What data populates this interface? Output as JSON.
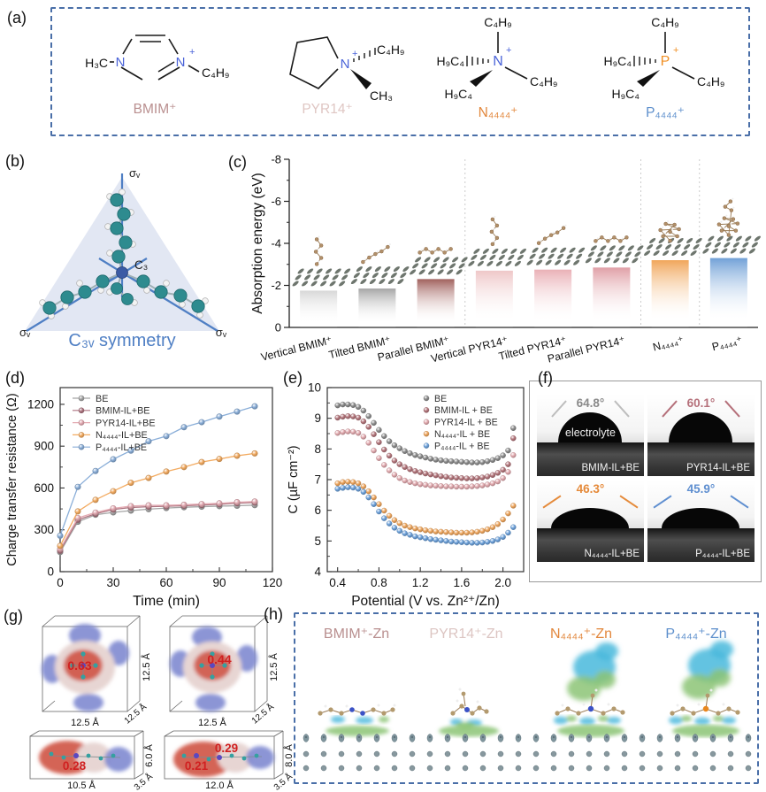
{
  "figure": {
    "panel_labels": {
      "a": "(a)",
      "b": "(b)",
      "c": "(c)",
      "d": "(d)",
      "e": "(e)",
      "f": "(f)",
      "g": "(g)",
      "h": "(h)"
    }
  },
  "panel_a": {
    "molecules": [
      {
        "label": "BMIM⁺",
        "label_color": "#b98f8f",
        "atom": "N",
        "atom2": "N",
        "plus": "+",
        "atom_color": "#4a63d8",
        "left_group": "H₃C",
        "right_group": "C₄H₉"
      },
      {
        "label": "PYR14⁺",
        "label_color": "#dfc6c3",
        "atom": "N",
        "plus": "+",
        "atom_color": "#4a63d8",
        "top_group": "C₄H₉",
        "bottom_group": "CH₃"
      },
      {
        "label": "N₄₄₄₄⁺",
        "label_color": "#e2873c",
        "atom": "N",
        "plus": "+",
        "atom_color": "#4a63d8",
        "top_group": "C₄H₉",
        "right_group": "C₄H₉",
        "left_upper": "H₉C₄",
        "left_lower": "H₉C₄"
      },
      {
        "label": "P₄₄₄₄⁺",
        "label_color": "#5d8fcc",
        "atom": "P",
        "plus": "+",
        "atom_color": "#f09025",
        "top_group": "C₄H₉",
        "right_group": "C₄H₉",
        "left_upper": "H₉C₄",
        "left_lower": "H₉C₄"
      }
    ]
  },
  "panel_b": {
    "sigma_top": "σᵥ",
    "sigma_left": "σᵥ",
    "sigma_right": "σᵥ",
    "c3": "C₃",
    "caption": "C₃ᵥ symmetry"
  },
  "chart_data": [
    {
      "id": "c",
      "type": "bar",
      "title": "",
      "ylabel": "Absorption energy (eV)",
      "ylim": [
        0,
        -8
      ],
      "yticks": [
        0,
        -2,
        -4,
        -6,
        -8
      ],
      "categories": [
        "Vertical BMIM⁺",
        "Tilted BMIM⁺",
        "Parallel BMIM⁺",
        "Vertical PYR14⁺",
        "Tilted PYR14⁺",
        "Parallel PYR14⁺",
        "N₄₄₄₄⁺",
        "P₄₄₄₄⁺"
      ],
      "values": [
        -1.75,
        -1.85,
        -2.3,
        -2.7,
        -2.75,
        -2.85,
        -3.2,
        -3.3
      ],
      "bar_colors": [
        "#d6d6d6",
        "#a3a3a3",
        "#9e5c58",
        "#eec5c6",
        "#e9aeb4",
        "#df9da4",
        "#f0a355",
        "#6d9ed6"
      ],
      "insets": [
        "vertical",
        "tilted",
        "parallel",
        "vertical",
        "tilted",
        "parallel",
        "cluster",
        "cluster-large"
      ],
      "separators_after": [
        3,
        6,
        7
      ]
    },
    {
      "id": "d",
      "type": "line",
      "xlabel": "Time (min)",
      "ylabel": "Charge transfer resistance (Ω)",
      "xlim": [
        0,
        120
      ],
      "ylim": [
        0,
        1320
      ],
      "xticks": [
        0,
        30,
        60,
        90,
        120
      ],
      "yticks": [
        0,
        300,
        600,
        900,
        1200
      ],
      "x": [
        0,
        10,
        20,
        30,
        40,
        50,
        60,
        70,
        80,
        90,
        100,
        110
      ],
      "series": [
        {
          "name": "BE",
          "color": "#a5a5a5",
          "values": [
            140,
            358,
            408,
            425,
            438,
            448,
            456,
            462,
            466,
            470,
            473,
            477
          ]
        },
        {
          "name": "BMIM-IL+BE",
          "color": "#ad7480",
          "values": [
            150,
            372,
            415,
            446,
            460,
            466,
            469,
            473,
            478,
            483,
            491,
            496
          ]
        },
        {
          "name": "PYR14-IL+BE",
          "color": "#e4aab2",
          "values": [
            163,
            385,
            424,
            454,
            470,
            476,
            476,
            480,
            485,
            490,
            498,
            503
          ]
        },
        {
          "name": "N₄₄₄₄-IL+BE",
          "color": "#f3ab61",
          "values": [
            185,
            432,
            515,
            577,
            637,
            672,
            718,
            750,
            786,
            808,
            831,
            848
          ]
        },
        {
          "name": "P₄₄₄₄-IL+BE",
          "color": "#8aaed8",
          "values": [
            258,
            608,
            722,
            806,
            868,
            935,
            972,
            1036,
            1072,
            1112,
            1148,
            1186
          ]
        }
      ]
    },
    {
      "id": "e",
      "type": "scatter",
      "xlabel": "Potential (V vs. Zn²⁺/Zn)",
      "ylabel": "C (µF cm⁻²)",
      "xlim": [
        0.3,
        2.2
      ],
      "ylim": [
        4,
        10
      ],
      "xticks": [
        0.4,
        0.8,
        1.2,
        1.6,
        2.0
      ],
      "yticks": [
        4,
        5,
        6,
        7,
        8,
        9,
        10
      ],
      "x": [
        0.4,
        0.45,
        0.5,
        0.55,
        0.6,
        0.65,
        0.7,
        0.75,
        0.8,
        0.85,
        0.9,
        0.95,
        1.0,
        1.05,
        1.1,
        1.15,
        1.2,
        1.25,
        1.3,
        1.35,
        1.4,
        1.45,
        1.5,
        1.55,
        1.6,
        1.65,
        1.7,
        1.75,
        1.8,
        1.85,
        1.9,
        1.95,
        2.0,
        2.05,
        2.1
      ],
      "series": [
        {
          "name": "BE",
          "color": "#8d8d8d",
          "values": [
            9.42,
            9.45,
            9.45,
            9.43,
            9.37,
            9.25,
            9.07,
            8.85,
            8.62,
            8.42,
            8.25,
            8.12,
            8.02,
            7.93,
            7.86,
            7.8,
            7.76,
            7.72,
            7.68,
            7.65,
            7.63,
            7.61,
            7.6,
            7.59,
            7.58,
            7.57,
            7.56,
            7.56,
            7.57,
            7.6,
            7.64,
            7.7,
            7.79,
            7.95,
            8.68
          ]
        },
        {
          "name": "BMIM-IL + BE",
          "color": "#b5777d",
          "values": [
            9.02,
            9.05,
            9.07,
            9.06,
            9.02,
            8.9,
            8.72,
            8.48,
            8.22,
            7.98,
            7.78,
            7.62,
            7.5,
            7.41,
            7.34,
            7.28,
            7.24,
            7.2,
            7.17,
            7.14,
            7.11,
            7.09,
            7.07,
            7.06,
            7.05,
            7.04,
            7.04,
            7.05,
            7.07,
            7.1,
            7.15,
            7.22,
            7.32,
            7.5,
            8.35
          ]
        },
        {
          "name": "PYR14-IL + BE",
          "color": "#e3abb0",
          "values": [
            8.52,
            8.55,
            8.57,
            8.56,
            8.52,
            8.4,
            8.2,
            7.95,
            7.7,
            7.48,
            7.3,
            7.16,
            7.05,
            6.97,
            6.92,
            6.88,
            6.85,
            6.83,
            6.81,
            6.8,
            6.79,
            6.78,
            6.78,
            6.77,
            6.77,
            6.77,
            6.78,
            6.79,
            6.81,
            6.84,
            6.88,
            6.94,
            7.05,
            7.25,
            7.8
          ]
        },
        {
          "name": "N₄₄₄₄-IL + BE",
          "color": "#f0a860",
          "values": [
            6.88,
            6.92,
            6.93,
            6.92,
            6.88,
            6.78,
            6.62,
            6.42,
            6.2,
            5.99,
            5.82,
            5.68,
            5.58,
            5.5,
            5.45,
            5.41,
            5.38,
            5.35,
            5.33,
            5.31,
            5.3,
            5.29,
            5.28,
            5.27,
            5.27,
            5.27,
            5.28,
            5.3,
            5.33,
            5.38,
            5.45,
            5.55,
            5.7,
            5.9,
            6.15
          ]
        },
        {
          "name": "P₄₄₄₄-IL + BE",
          "color": "#6fa3dc",
          "values": [
            6.7,
            6.73,
            6.75,
            6.74,
            6.7,
            6.6,
            6.42,
            6.2,
            5.96,
            5.74,
            5.57,
            5.43,
            5.33,
            5.25,
            5.2,
            5.15,
            5.12,
            5.09,
            5.06,
            5.04,
            5.02,
            5.0,
            4.98,
            4.97,
            4.96,
            4.95,
            4.94,
            4.94,
            4.95,
            4.97,
            5.0,
            5.05,
            5.13,
            5.27,
            5.45
          ]
        }
      ]
    }
  ],
  "panel_f": {
    "cells": [
      {
        "angle": "64.8°",
        "angle_color": "#8a8a8a",
        "tangent_color": "#bdbdbd",
        "label": "BMIM-IL+BE",
        "extra1": "electrolyte",
        "extra2": "Zn"
      },
      {
        "angle": "60.1°",
        "angle_color": "#b5707a",
        "tangent_color": "#b5707a",
        "label": "PYR14-IL+BE"
      },
      {
        "angle": "46.3°",
        "angle_color": "#e58a3a",
        "tangent_color": "#e58a3a",
        "label": "N₄₄₄₄-IL+BE"
      },
      {
        "angle": "45.9°",
        "angle_color": "#5f8fd0",
        "tangent_color": "#5f8fd0",
        "label": "P₄₄₄₄-IL+BE"
      }
    ]
  },
  "panel_g": {
    "boxes": [
      {
        "value": "0.63",
        "width_label": "12.5 Å",
        "height_label": "12.5 Å",
        "depth_label": "12.5 Å"
      },
      {
        "value": "0.44",
        "width_label": "12.5 Å",
        "height_label": "12.5 Å",
        "depth_label": "12.5 Å"
      },
      {
        "value": "0.28",
        "width_label": "10.5 Å",
        "height_label": "6.0 Å",
        "depth_label": "3.5 Å"
      },
      {
        "value": "0.29",
        "value2": "0.21",
        "width_label": "12.0 Å",
        "height_label": "8.0 Å",
        "depth_label": "3.5 Å"
      }
    ]
  },
  "panel_h": {
    "groups": [
      {
        "label": "BMIM⁺-Zn",
        "color": "#b98f8f"
      },
      {
        "label": "PYR14⁺-Zn",
        "color": "#dcc5c2"
      },
      {
        "label": "N₄₄₄₄⁺-Zn",
        "color": "#e2873c"
      },
      {
        "label": "P₄₄₄₄⁺-Zn",
        "color": "#5d8fcc"
      }
    ]
  }
}
